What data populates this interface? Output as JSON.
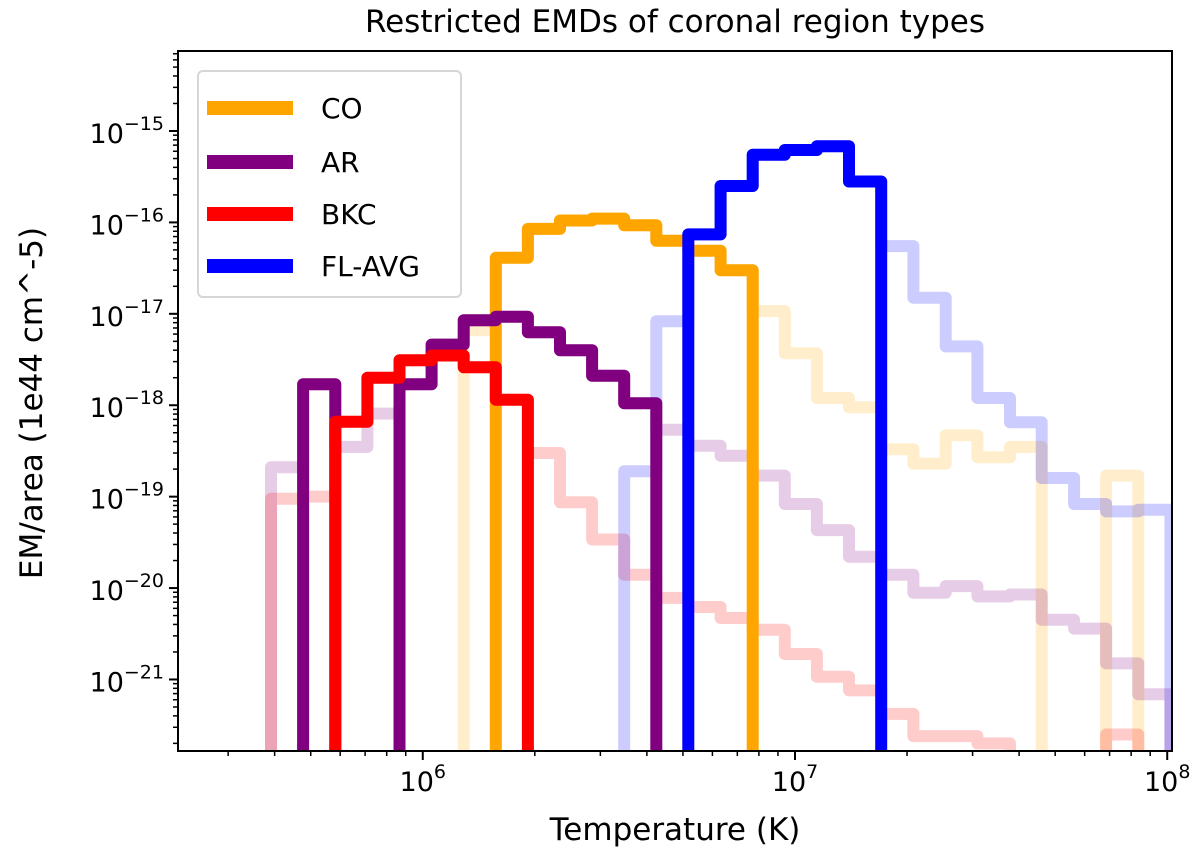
{
  "chart_data": {
    "type": "line",
    "style": "step histogram",
    "title": "Restricted EMDs of coronal region types",
    "xlabel": "Temperature (K)",
    "ylabel": "EM/area (1e44 cm^-5)",
    "xscale": "log",
    "yscale": "log",
    "xlim": [
      220000,
      103000000
    ],
    "ylim": [
      1.65e-22,
      7.5e-15
    ],
    "x_ticks": [
      {
        "base": "10",
        "exp": "6",
        "value": 1000000.0
      },
      {
        "base": "10",
        "exp": "7",
        "value": 10000000.0
      },
      {
        "base": "10",
        "exp": "8",
        "value": 100000000.0
      }
    ],
    "y_ticks": [
      {
        "base": "10",
        "exp": "−15",
        "value": 1e-15
      },
      {
        "base": "10",
        "exp": "−16",
        "value": 1e-16
      },
      {
        "base": "10",
        "exp": "−17",
        "value": 1e-17
      },
      {
        "base": "10",
        "exp": "−18",
        "value": 1e-18
      },
      {
        "base": "10",
        "exp": "−19",
        "value": 1e-19
      },
      {
        "base": "10",
        "exp": "−20",
        "value": 1e-20
      },
      {
        "base": "10",
        "exp": "−21",
        "value": 1e-21
      }
    ],
    "grid": false,
    "legend_position": "top-left",
    "bin_edges_K": [
      391000.0,
      477000.0,
      582000.0,
      710000.0,
      866000.0,
      1056000.0,
      1288000.0,
      1571000.0,
      1916000.0,
      2337000.0,
      2851000.0,
      3477000.0,
      4240000.0,
      5170000.0,
      6310000.0,
      7700000.0,
      9390000.0,
      11450000.0,
      13970000.0,
      17040000.0,
      20800000.0,
      25400000.0,
      30900000.0,
      37800000.0,
      46000000.0,
      56200000.0,
      68500000.0,
      83600000.0,
      102000000.0
    ],
    "series": [
      {
        "name": "CO",
        "color": "#ffa500",
        "full": [
          null,
          null,
          null,
          null,
          null,
          null,
          6.6e-18,
          4.1e-17,
          8.5e-17,
          1.05e-16,
          1.1e-16,
          9.3e-17,
          6.3e-17,
          4.9e-17,
          3e-17,
          1.07e-17,
          3.7e-18,
          1.2e-18,
          9.5e-19,
          3.3e-19,
          2.3e-19,
          4.7e-19,
          2.7e-19,
          3.5e-19,
          null,
          null,
          1.7e-19,
          null
        ],
        "restricted": [
          null,
          null,
          null,
          null,
          null,
          null,
          null,
          4.1e-17,
          8.5e-17,
          1.05e-16,
          1.1e-16,
          9.3e-17,
          6.3e-17,
          4.9e-17,
          3e-17,
          null,
          null,
          null,
          null,
          null,
          null,
          null,
          null,
          null,
          null,
          null,
          null,
          null
        ]
      },
      {
        "name": "AR",
        "color": "#800080",
        "full": [
          2.1e-19,
          1.7e-18,
          3.5e-19,
          8.1e-19,
          1.7e-18,
          4.6e-18,
          8.5e-18,
          9.3e-18,
          6.3e-18,
          4e-18,
          2.1e-18,
          1.05e-18,
          5.4e-19,
          3.6e-19,
          2.8e-19,
          1.7e-19,
          8.3e-20,
          4.3e-20,
          2.2e-20,
          1.4e-20,
          8.9e-21,
          1.05e-20,
          8.1e-21,
          8.5e-21,
          4.5e-21,
          3.6e-21,
          1.5e-21,
          6.9e-22
        ],
        "restricted": [
          null,
          1.7e-18,
          null,
          null,
          1.7e-18,
          4.6e-18,
          8.5e-18,
          9.3e-18,
          6.3e-18,
          4e-18,
          2.1e-18,
          1.05e-18,
          null,
          null,
          null,
          null,
          null,
          null,
          null,
          null,
          null,
          null,
          null,
          null,
          null,
          null,
          null,
          null
        ]
      },
      {
        "name": "BKC",
        "color": "#ff0000",
        "full": [
          9.5e-20,
          1e-19,
          6.6e-19,
          2e-18,
          3.1e-18,
          3.5e-18,
          2.6e-18,
          1.15e-18,
          3e-19,
          8.7e-20,
          3.4e-20,
          1.4e-20,
          7.8e-21,
          6.2e-21,
          4.7e-21,
          3.5e-21,
          1.9e-21,
          1.07e-21,
          7.6e-22,
          4.2e-22,
          2.4e-22,
          2.4e-22,
          2e-22,
          null,
          null,
          null,
          2.5e-22,
          null
        ],
        "restricted": [
          null,
          null,
          6.6e-19,
          2e-18,
          3.1e-18,
          3.5e-18,
          2.6e-18,
          1.15e-18,
          null,
          null,
          null,
          null,
          null,
          null,
          null,
          null,
          null,
          null,
          null,
          null,
          null,
          null,
          null,
          null,
          null,
          null,
          null,
          null
        ]
      },
      {
        "name": "FL-AVG",
        "color": "#0000ff",
        "full": [
          null,
          null,
          null,
          null,
          null,
          null,
          null,
          null,
          null,
          null,
          null,
          1.9e-19,
          8.3e-18,
          7.4e-17,
          2.5e-16,
          5.5e-16,
          6.2e-16,
          6.8e-16,
          2.8e-16,
          5.5e-17,
          1.5e-17,
          4.4e-18,
          1.2e-18,
          6.5e-19,
          1.6e-19,
          8.3e-20,
          6.9e-20,
          7.2e-20
        ],
        "restricted": [
          null,
          null,
          null,
          null,
          null,
          null,
          null,
          null,
          null,
          null,
          null,
          null,
          null,
          7.4e-17,
          2.5e-16,
          5.5e-16,
          6.2e-16,
          6.8e-16,
          2.8e-16,
          null,
          null,
          null,
          null,
          null,
          null,
          null,
          null,
          null
        ]
      }
    ]
  }
}
